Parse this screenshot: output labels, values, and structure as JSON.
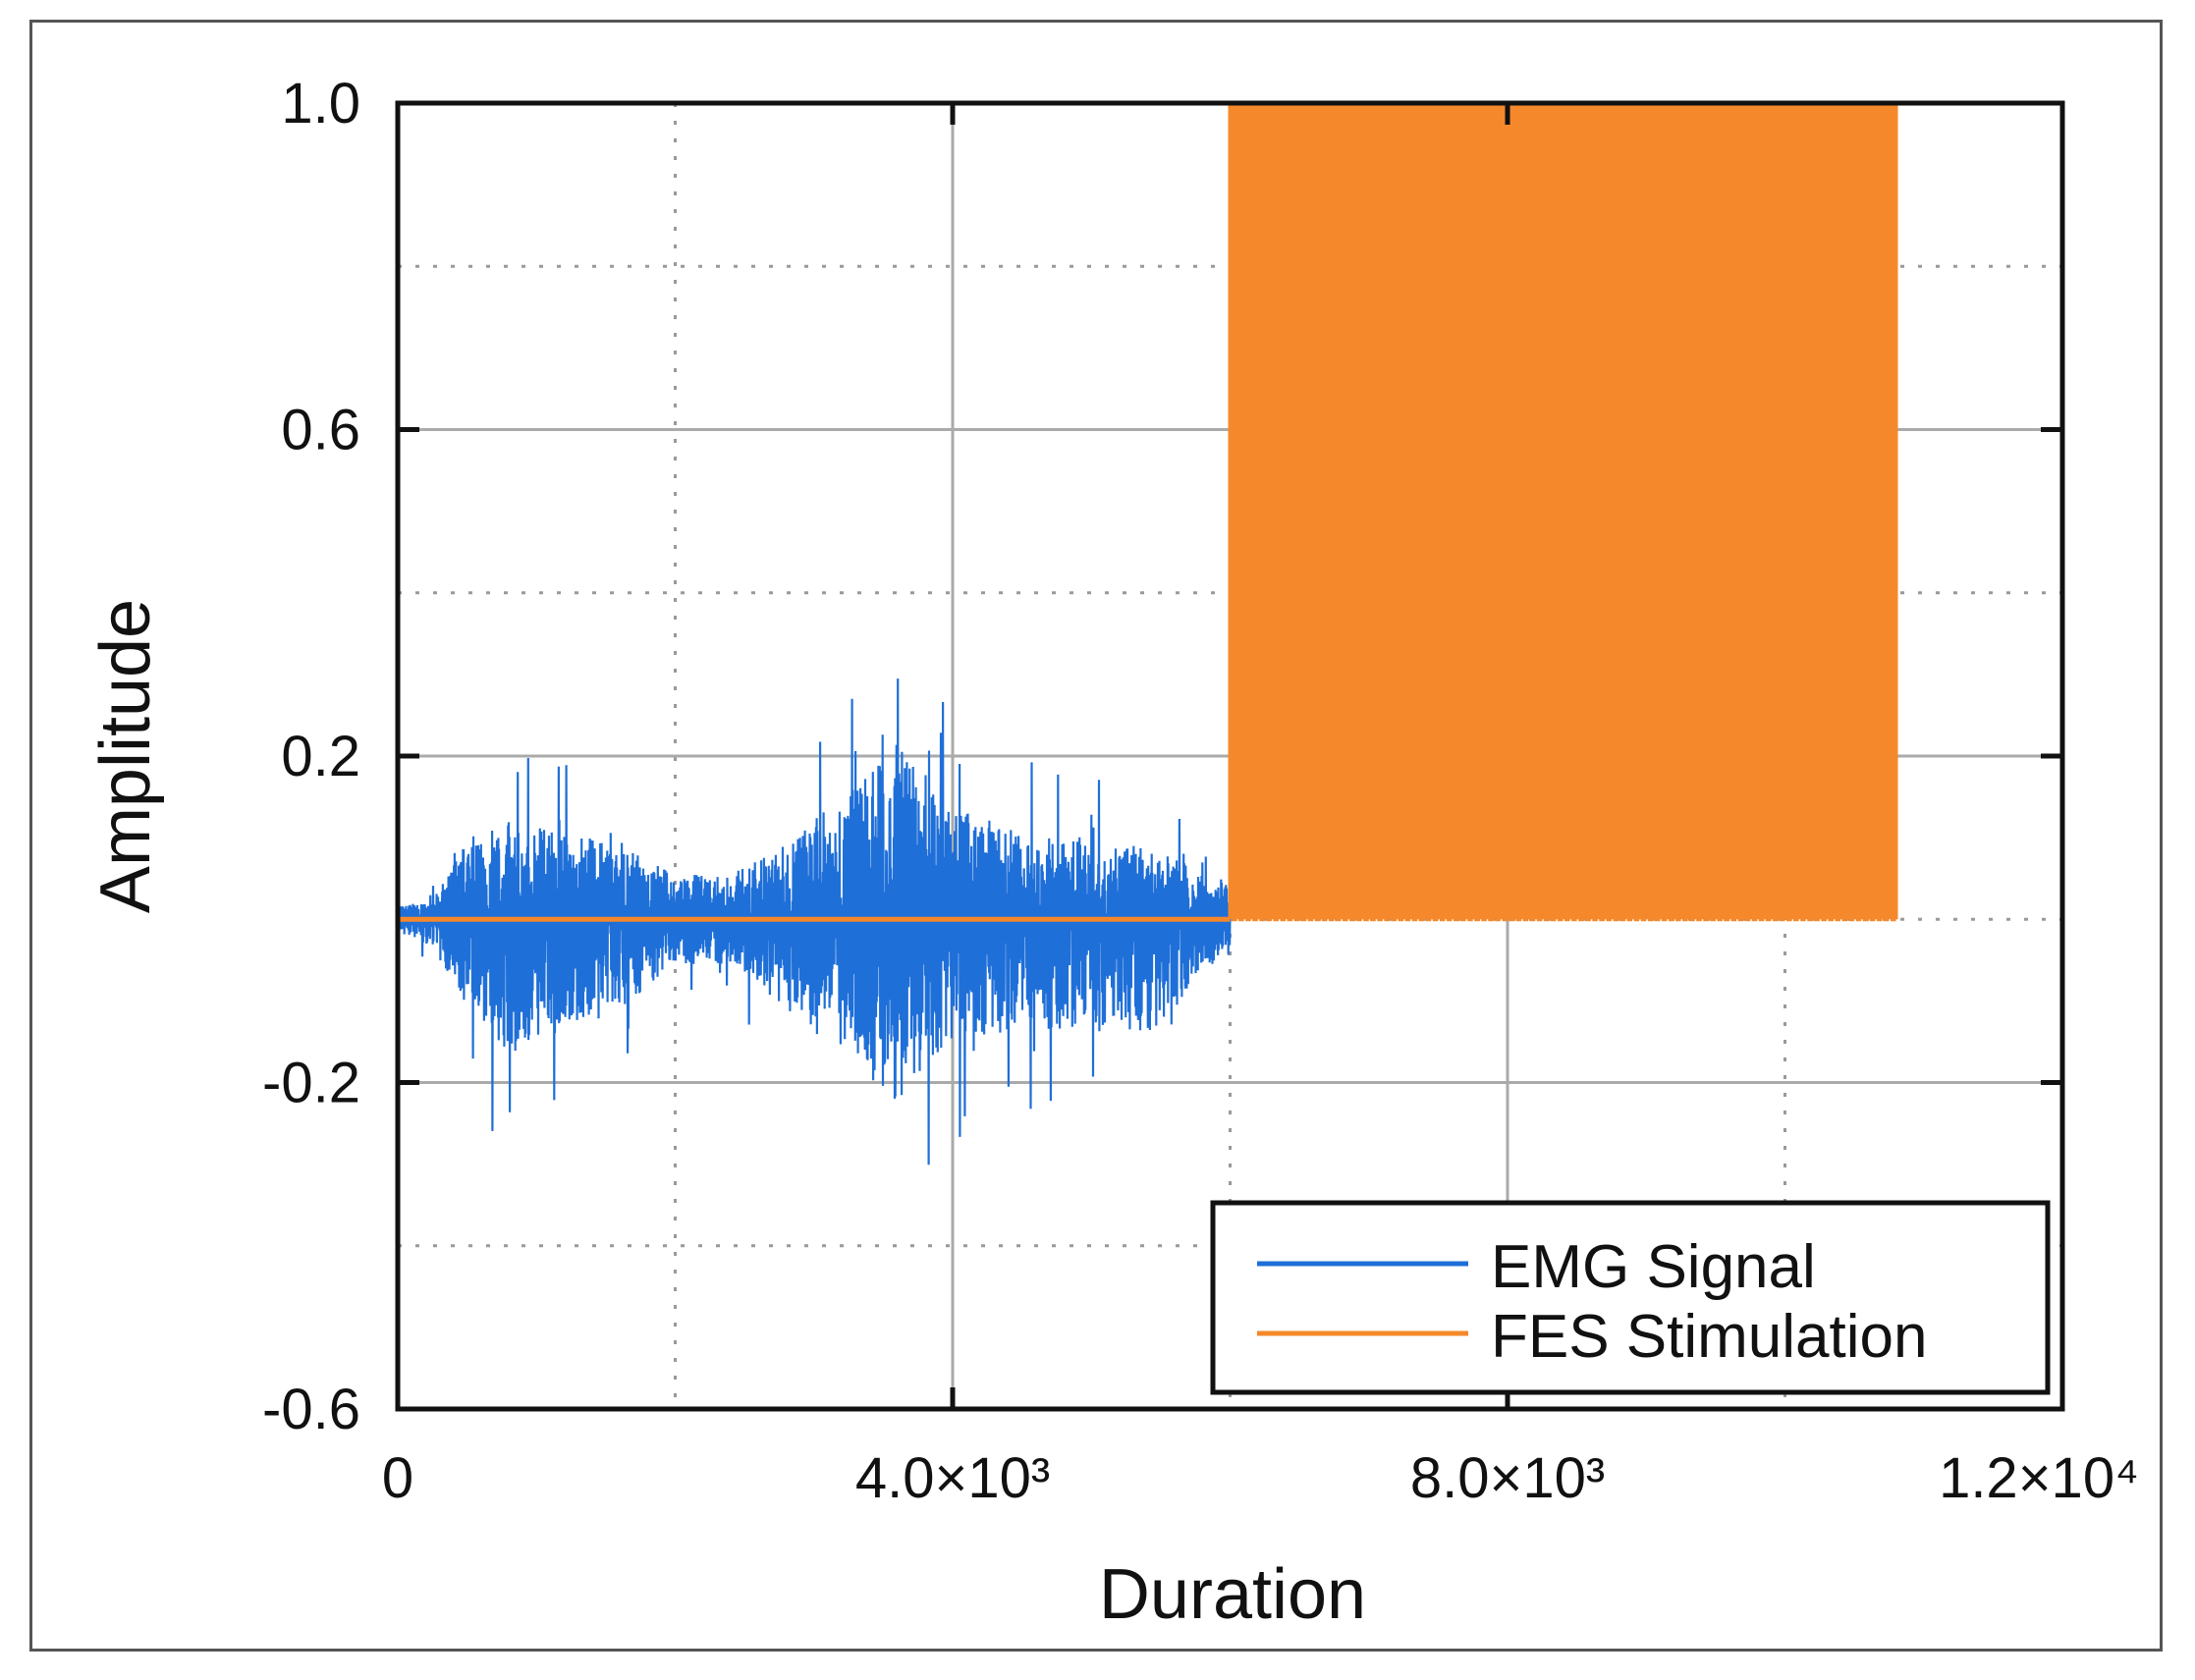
{
  "chart_data": {
    "type": "line",
    "title": "",
    "xlabel": "Duration",
    "ylabel": "Amplitude",
    "xlim": [
      0,
      12000
    ],
    "ylim": [
      -0.6,
      1.0
    ],
    "x_ticks": [
      {
        "value": 0,
        "label": "0"
      },
      {
        "value": 4000,
        "label": "4.0×10³"
      },
      {
        "value": 8000,
        "label": "8.0×10³"
      },
      {
        "value": 12000,
        "label": "1.2×10⁴"
      }
    ],
    "y_ticks": [
      {
        "value": 1.0,
        "label": "1.0"
      },
      {
        "value": 0.6,
        "label": "0.6"
      },
      {
        "value": 0.2,
        "label": "0.2"
      },
      {
        "value": -0.2,
        "label": "-0.2"
      },
      {
        "value": -0.6,
        "label": "-0.6"
      }
    ],
    "minor_grid_x": [
      2000,
      6000,
      10000
    ],
    "minor_grid_y": [
      0.8,
      0.4,
      0.0,
      -0.4
    ],
    "grid": true,
    "legend_position": "bottom-right",
    "series": [
      {
        "name": "EMG Signal",
        "color": "#1f6fd8",
        "x_range": [
          0,
          6000
        ],
        "envelope": [
          {
            "x": 0,
            "upper": 0.03,
            "lower": -0.03
          },
          {
            "x": 250,
            "upper": 0.04,
            "lower": -0.06
          },
          {
            "x": 500,
            "upper": 0.18,
            "lower": -0.2
          },
          {
            "x": 800,
            "upper": 0.22,
            "lower": -0.3
          },
          {
            "x": 1200,
            "upper": 0.2,
            "lower": -0.25
          },
          {
            "x": 1700,
            "upper": 0.15,
            "lower": -0.18
          },
          {
            "x": 2000,
            "upper": 0.1,
            "lower": -0.1
          },
          {
            "x": 2400,
            "upper": 0.1,
            "lower": -0.1
          },
          {
            "x": 2800,
            "upper": 0.17,
            "lower": -0.2
          },
          {
            "x": 3300,
            "upper": 0.3,
            "lower": -0.3
          },
          {
            "x": 3600,
            "upper": 0.4,
            "lower": -0.42
          },
          {
            "x": 4000,
            "upper": 0.25,
            "lower": -0.28
          },
          {
            "x": 4500,
            "upper": 0.2,
            "lower": -0.24
          },
          {
            "x": 5000,
            "upper": 0.18,
            "lower": -0.25
          },
          {
            "x": 5500,
            "upper": 0.16,
            "lower": -0.25
          },
          {
            "x": 5800,
            "upper": 0.1,
            "lower": -0.1
          },
          {
            "x": 6000,
            "upper": 0.08,
            "lower": -0.1
          }
        ]
      },
      {
        "name": "FES Stimulation",
        "color": "#f5882a",
        "baseline": 0,
        "pulse_amplitude": 1.0,
        "pulse_start": 6000,
        "pulse_end": 10800,
        "pulse_period": 50
      }
    ]
  }
}
